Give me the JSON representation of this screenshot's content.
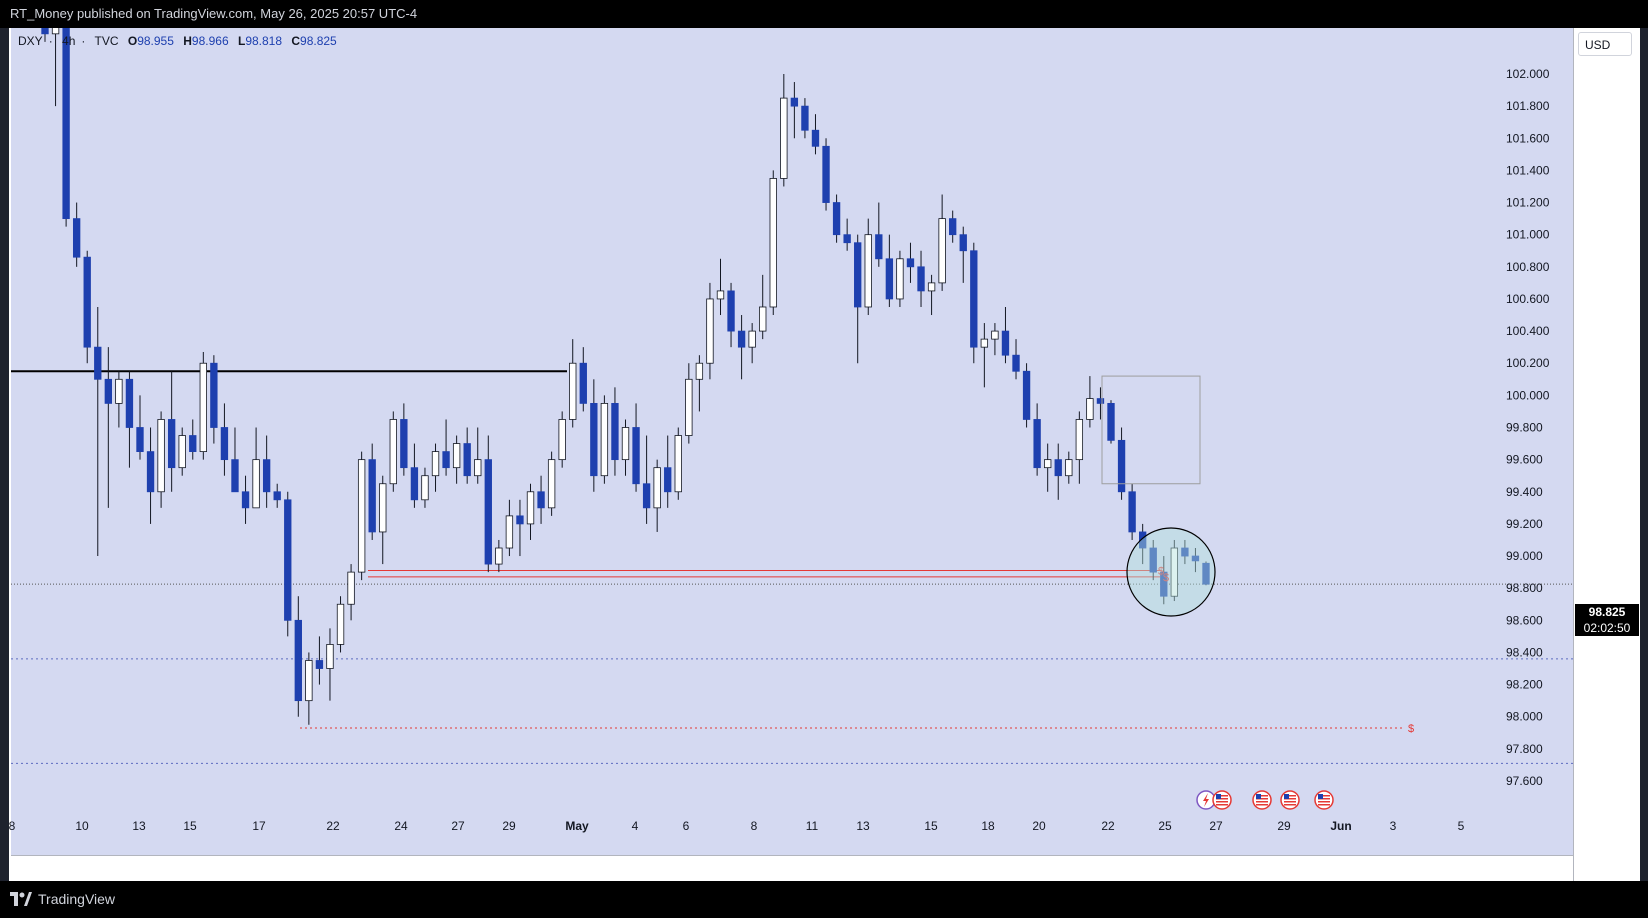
{
  "header": {
    "publish_text": "RT_Money published on TradingView.com, May 26, 2025 20:57 UTC-4"
  },
  "legend": {
    "symbol": "DXY",
    "interval": "4h",
    "source": "TVC",
    "open_label": "O",
    "open": "98.955",
    "high_label": "H",
    "high": "98.966",
    "low_label": "L",
    "low": "98.818",
    "close_label": "C",
    "close": "98.825"
  },
  "axis": {
    "currency": "USD"
  },
  "last_price": {
    "price": "98.825",
    "countdown": "02:02:50"
  },
  "footer": {
    "brand": "TradingView"
  },
  "colors": {
    "background": "#d4d9f1",
    "candle_down": "#1e40af",
    "candle_up": "#ffffff",
    "liquidity_line": "#e53935",
    "level_line": "#000000",
    "dotted_level": "#5c6bc0",
    "highlight_circle": "#b2dfdb"
  },
  "chart_data": {
    "type": "candlestick",
    "symbol": "DXY",
    "timeframe": "4h",
    "ylim": [
      97.4,
      102.3
    ],
    "y_ticks": [
      "102.000",
      "101.800",
      "101.600",
      "101.400",
      "101.200",
      "101.000",
      "100.800",
      "100.600",
      "100.400",
      "100.200",
      "100.000",
      "99.800",
      "99.600",
      "99.400",
      "99.200",
      "99.000",
      "98.800",
      "98.600",
      "98.400",
      "98.200",
      "98.000",
      "97.800",
      "97.600"
    ],
    "x_ticks": [
      "8",
      "10",
      "13",
      "15",
      "17",
      "22",
      "24",
      "27",
      "29",
      "May",
      "4",
      "6",
      "8",
      "11",
      "13",
      "15",
      "18",
      "20",
      "22",
      "25",
      "27",
      "29",
      "Jun",
      "3",
      "5"
    ],
    "horizontal_levels": [
      {
        "name": "resistance",
        "price": 100.15,
        "style": "solid",
        "color": "#000000"
      },
      {
        "name": "equal-lows-1",
        "price": 98.91,
        "style": "solid",
        "color": "#e53935"
      },
      {
        "name": "equal-lows-2",
        "price": 98.87,
        "style": "solid",
        "color": "#e53935"
      },
      {
        "name": "low-target",
        "price": 97.93,
        "style": "dotted",
        "color": "#e53935"
      },
      {
        "name": "upper-dotted",
        "price": 98.36,
        "style": "dotted",
        "color": "#5c6bc0"
      },
      {
        "name": "lower-dotted",
        "price": 97.71,
        "style": "dotted",
        "color": "#5c6bc0"
      },
      {
        "name": "last-price",
        "price": 98.825,
        "style": "dotted",
        "color": "#555555"
      }
    ],
    "labels": [
      {
        "text": "$",
        "price": 98.91
      },
      {
        "text": "$",
        "price": 98.87
      },
      {
        "text": "$",
        "price": 97.93
      }
    ],
    "zones": [
      {
        "name": "order-block-box",
        "price_top": 100.12,
        "price_bottom": 99.45
      }
    ],
    "candles": [
      {
        "o": 102.55,
        "h": 102.7,
        "l": 102.2,
        "c": 102.25
      },
      {
        "o": 102.25,
        "h": 102.6,
        "l": 101.8,
        "c": 102.4
      },
      {
        "o": 102.4,
        "h": 102.6,
        "l": 101.05,
        "c": 101.1
      },
      {
        "o": 101.1,
        "h": 101.2,
        "l": 100.8,
        "c": 100.86
      },
      {
        "o": 100.86,
        "h": 100.9,
        "l": 100.2,
        "c": 100.3
      },
      {
        "o": 100.3,
        "h": 100.55,
        "l": 99.0,
        "c": 100.1
      },
      {
        "o": 100.1,
        "h": 100.3,
        "l": 99.3,
        "c": 99.95
      },
      {
        "o": 99.95,
        "h": 100.15,
        "l": 99.8,
        "c": 100.1
      },
      {
        "o": 100.1,
        "h": 100.15,
        "l": 99.55,
        "c": 99.8
      },
      {
        "o": 99.8,
        "h": 100.0,
        "l": 99.6,
        "c": 99.65
      },
      {
        "o": 99.65,
        "h": 99.8,
        "l": 99.2,
        "c": 99.4
      },
      {
        "o": 99.4,
        "h": 99.9,
        "l": 99.3,
        "c": 99.85
      },
      {
        "o": 99.85,
        "h": 100.15,
        "l": 99.4,
        "c": 99.55
      },
      {
        "o": 99.55,
        "h": 99.8,
        "l": 99.5,
        "c": 99.75
      },
      {
        "o": 99.75,
        "h": 99.85,
        "l": 99.6,
        "c": 99.65
      },
      {
        "o": 99.65,
        "h": 100.27,
        "l": 99.6,
        "c": 100.2
      },
      {
        "o": 100.2,
        "h": 100.25,
        "l": 99.7,
        "c": 99.8
      },
      {
        "o": 99.8,
        "h": 99.95,
        "l": 99.5,
        "c": 99.6
      },
      {
        "o": 99.6,
        "h": 99.8,
        "l": 99.4,
        "c": 99.4
      },
      {
        "o": 99.4,
        "h": 99.5,
        "l": 99.2,
        "c": 99.3
      },
      {
        "o": 99.3,
        "h": 99.8,
        "l": 99.3,
        "c": 99.6
      },
      {
        "o": 99.6,
        "h": 99.75,
        "l": 99.3,
        "c": 99.4
      },
      {
        "o": 99.4,
        "h": 99.45,
        "l": 99.3,
        "c": 99.35
      },
      {
        "o": 99.35,
        "h": 99.4,
        "l": 98.5,
        "c": 98.6
      },
      {
        "o": 98.6,
        "h": 98.75,
        "l": 98.0,
        "c": 98.1
      },
      {
        "o": 98.1,
        "h": 98.4,
        "l": 97.95,
        "c": 98.35
      },
      {
        "o": 98.35,
        "h": 98.5,
        "l": 98.2,
        "c": 98.3
      },
      {
        "o": 98.3,
        "h": 98.55,
        "l": 98.1,
        "c": 98.45
      },
      {
        "o": 98.45,
        "h": 98.75,
        "l": 98.4,
        "c": 98.7
      },
      {
        "o": 98.7,
        "h": 98.95,
        "l": 98.6,
        "c": 98.9
      },
      {
        "o": 98.9,
        "h": 99.65,
        "l": 98.85,
        "c": 99.6
      },
      {
        "o": 99.6,
        "h": 99.7,
        "l": 99.1,
        "c": 99.15
      },
      {
        "o": 99.15,
        "h": 99.5,
        "l": 98.95,
        "c": 99.45
      },
      {
        "o": 99.45,
        "h": 99.9,
        "l": 99.4,
        "c": 99.85
      },
      {
        "o": 99.85,
        "h": 99.95,
        "l": 99.5,
        "c": 99.55
      },
      {
        "o": 99.55,
        "h": 99.7,
        "l": 99.3,
        "c": 99.35
      },
      {
        "o": 99.35,
        "h": 99.55,
        "l": 99.3,
        "c": 99.5
      },
      {
        "o": 99.5,
        "h": 99.7,
        "l": 99.4,
        "c": 99.65
      },
      {
        "o": 99.65,
        "h": 99.85,
        "l": 99.5,
        "c": 99.55
      },
      {
        "o": 99.55,
        "h": 99.75,
        "l": 99.45,
        "c": 99.7
      },
      {
        "o": 99.7,
        "h": 99.8,
        "l": 99.45,
        "c": 99.5
      },
      {
        "o": 99.5,
        "h": 99.8,
        "l": 99.45,
        "c": 99.6
      },
      {
        "o": 99.6,
        "h": 99.75,
        "l": 98.9,
        "c": 98.95
      },
      {
        "o": 98.95,
        "h": 99.1,
        "l": 98.9,
        "c": 99.05
      },
      {
        "o": 99.05,
        "h": 99.35,
        "l": 99.0,
        "c": 99.25
      },
      {
        "o": 99.25,
        "h": 99.35,
        "l": 99.0,
        "c": 99.2
      },
      {
        "o": 99.2,
        "h": 99.45,
        "l": 99.1,
        "c": 99.4
      },
      {
        "o": 99.4,
        "h": 99.5,
        "l": 99.2,
        "c": 99.3
      },
      {
        "o": 99.3,
        "h": 99.65,
        "l": 99.25,
        "c": 99.6
      },
      {
        "o": 99.6,
        "h": 99.9,
        "l": 99.55,
        "c": 99.85
      },
      {
        "o": 99.85,
        "h": 100.35,
        "l": 99.8,
        "c": 100.2
      },
      {
        "o": 100.2,
        "h": 100.3,
        "l": 99.9,
        "c": 99.95
      },
      {
        "o": 99.95,
        "h": 100.1,
        "l": 99.4,
        "c": 99.5
      },
      {
        "o": 99.5,
        "h": 100.0,
        "l": 99.45,
        "c": 99.95
      },
      {
        "o": 99.95,
        "h": 100.05,
        "l": 99.5,
        "c": 99.6
      },
      {
        "o": 99.6,
        "h": 99.85,
        "l": 99.5,
        "c": 99.8
      },
      {
        "o": 99.8,
        "h": 99.95,
        "l": 99.4,
        "c": 99.45
      },
      {
        "o": 99.45,
        "h": 99.75,
        "l": 99.2,
        "c": 99.3
      },
      {
        "o": 99.3,
        "h": 99.6,
        "l": 99.15,
        "c": 99.55
      },
      {
        "o": 99.55,
        "h": 99.75,
        "l": 99.3,
        "c": 99.4
      },
      {
        "o": 99.4,
        "h": 99.8,
        "l": 99.35,
        "c": 99.75
      },
      {
        "o": 99.75,
        "h": 100.2,
        "l": 99.7,
        "c": 100.1
      },
      {
        "o": 100.1,
        "h": 100.25,
        "l": 99.9,
        "c": 100.2
      },
      {
        "o": 100.2,
        "h": 100.7,
        "l": 100.1,
        "c": 100.6
      },
      {
        "o": 100.6,
        "h": 100.85,
        "l": 100.5,
        "c": 100.65
      },
      {
        "o": 100.65,
        "h": 100.7,
        "l": 100.3,
        "c": 100.4
      },
      {
        "o": 100.4,
        "h": 100.5,
        "l": 100.1,
        "c": 100.3
      },
      {
        "o": 100.3,
        "h": 100.45,
        "l": 100.2,
        "c": 100.4
      },
      {
        "o": 100.4,
        "h": 100.75,
        "l": 100.35,
        "c": 100.55
      },
      {
        "o": 100.55,
        "h": 101.4,
        "l": 100.5,
        "c": 101.35
      },
      {
        "o": 101.35,
        "h": 102.0,
        "l": 101.3,
        "c": 101.85
      },
      {
        "o": 101.85,
        "h": 101.95,
        "l": 101.6,
        "c": 101.8
      },
      {
        "o": 101.8,
        "h": 101.85,
        "l": 101.6,
        "c": 101.65
      },
      {
        "o": 101.65,
        "h": 101.75,
        "l": 101.5,
        "c": 101.55
      },
      {
        "o": 101.55,
        "h": 101.6,
        "l": 101.15,
        "c": 101.2
      },
      {
        "o": 101.2,
        "h": 101.25,
        "l": 100.95,
        "c": 101.0
      },
      {
        "o": 101.0,
        "h": 101.1,
        "l": 100.9,
        "c": 100.95
      },
      {
        "o": 100.95,
        "h": 101.0,
        "l": 100.2,
        "c": 100.55
      },
      {
        "o": 100.55,
        "h": 101.1,
        "l": 100.5,
        "c": 101.0
      },
      {
        "o": 101.0,
        "h": 101.2,
        "l": 100.8,
        "c": 100.85
      },
      {
        "o": 100.85,
        "h": 101.0,
        "l": 100.55,
        "c": 100.6
      },
      {
        "o": 100.6,
        "h": 100.9,
        "l": 100.55,
        "c": 100.85
      },
      {
        "o": 100.85,
        "h": 100.95,
        "l": 100.7,
        "c": 100.8
      },
      {
        "o": 100.8,
        "h": 100.9,
        "l": 100.55,
        "c": 100.65
      },
      {
        "o": 100.65,
        "h": 100.75,
        "l": 100.5,
        "c": 100.7
      },
      {
        "o": 100.7,
        "h": 101.25,
        "l": 100.65,
        "c": 101.1
      },
      {
        "o": 101.1,
        "h": 101.15,
        "l": 100.95,
        "c": 101.0
      },
      {
        "o": 101.0,
        "h": 101.05,
        "l": 100.7,
        "c": 100.9
      },
      {
        "o": 100.9,
        "h": 100.95,
        "l": 100.2,
        "c": 100.3
      },
      {
        "o": 100.3,
        "h": 100.45,
        "l": 100.05,
        "c": 100.35
      },
      {
        "o": 100.35,
        "h": 100.45,
        "l": 100.25,
        "c": 100.4
      },
      {
        "o": 100.4,
        "h": 100.55,
        "l": 100.2,
        "c": 100.25
      },
      {
        "o": 100.25,
        "h": 100.35,
        "l": 100.1,
        "c": 100.15
      },
      {
        "o": 100.15,
        "h": 100.2,
        "l": 99.8,
        "c": 99.85
      },
      {
        "o": 99.85,
        "h": 99.95,
        "l": 99.5,
        "c": 99.55
      },
      {
        "o": 99.55,
        "h": 99.7,
        "l": 99.4,
        "c": 99.6
      },
      {
        "o": 99.6,
        "h": 99.7,
        "l": 99.35,
        "c": 99.5
      },
      {
        "o": 99.5,
        "h": 99.65,
        "l": 99.45,
        "c": 99.6
      },
      {
        "o": 99.6,
        "h": 99.9,
        "l": 99.45,
        "c": 99.85
      },
      {
        "o": 99.85,
        "h": 100.12,
        "l": 99.8,
        "c": 99.98
      },
      {
        "o": 99.98,
        "h": 100.05,
        "l": 99.85,
        "c": 99.95
      },
      {
        "o": 99.95,
        "h": 99.97,
        "l": 99.7,
        "c": 99.72
      },
      {
        "o": 99.72,
        "h": 99.8,
        "l": 99.35,
        "c": 99.4
      },
      {
        "o": 99.4,
        "h": 99.45,
        "l": 99.1,
        "c": 99.15
      },
      {
        "o": 99.15,
        "h": 99.2,
        "l": 98.95,
        "c": 99.05
      },
      {
        "o": 99.05,
        "h": 99.1,
        "l": 98.85,
        "c": 98.9
      },
      {
        "o": 98.9,
        "h": 99.0,
        "l": 98.7,
        "c": 98.75
      },
      {
        "o": 98.75,
        "h": 99.1,
        "l": 98.72,
        "c": 99.05
      },
      {
        "o": 99.05,
        "h": 99.1,
        "l": 98.95,
        "c": 99.0
      },
      {
        "o": 99.0,
        "h": 99.05,
        "l": 98.9,
        "c": 98.97
      },
      {
        "o": 98.955,
        "h": 98.966,
        "l": 98.818,
        "c": 98.825
      }
    ]
  }
}
